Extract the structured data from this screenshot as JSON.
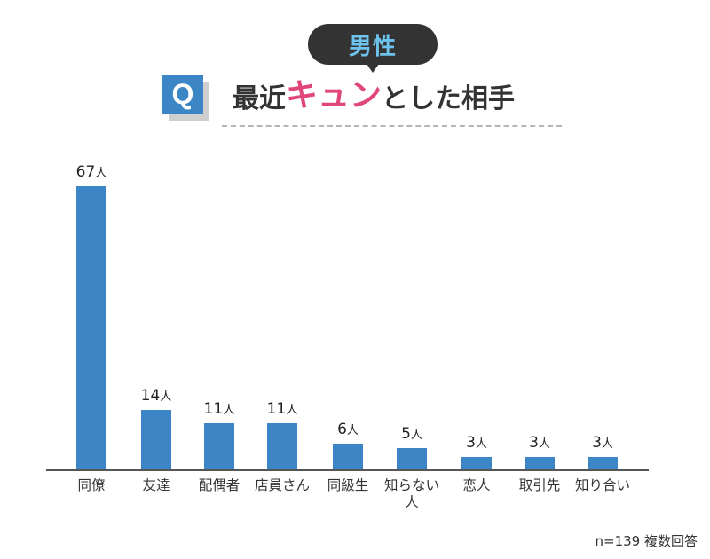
{
  "header": {
    "badge_label": "男性",
    "q_icon": "Q",
    "title_prefix": "最近",
    "title_accent": "キュン",
    "title_suffix": "とした相手",
    "accent_color": "#e0457b",
    "badge_text_color": "#6ec3ee"
  },
  "footer": {
    "note": "n=139 複数回答"
  },
  "colors": {
    "bar": "#3d86c6",
    "axis": "#555555"
  },
  "unit": "人",
  "chart_data": {
    "type": "bar",
    "title": "最近キュンとした相手 (男性)",
    "xlabel": "",
    "ylabel": "",
    "categories": [
      "同僚",
      "友達",
      "配偶者",
      "店員さん",
      "同級生",
      "知らない人",
      "恋人",
      "取引先",
      "知り合い"
    ],
    "values": [
      67,
      14,
      11,
      11,
      6,
      5,
      3,
      3,
      3
    ],
    "value_labels": [
      "67人",
      "14人",
      "11人",
      "11人",
      "6人",
      "5人",
      "3人",
      "3人",
      "3人"
    ],
    "unit": "人",
    "grid": false,
    "legend": null,
    "ylim": [
      0,
      67
    ],
    "annotation": "n=139 複数回答"
  }
}
